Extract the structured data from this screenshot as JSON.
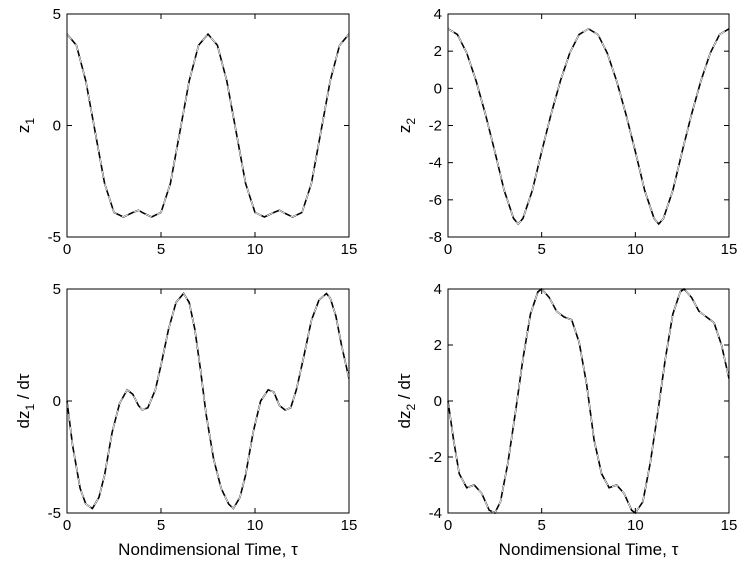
{
  "chart_data": [
    {
      "type": "line",
      "ylabel": "z1",
      "ylabel_main": "z",
      "ylabel_sub": "1",
      "xlabel": "",
      "xlim": [
        0,
        15
      ],
      "ylim": [
        -5,
        5
      ],
      "xticks": [
        "0",
        "5",
        "10",
        "15"
      ],
      "yticks": [
        "-5",
        "0",
        "5"
      ],
      "grid": false,
      "series": [
        {
          "style": "solid",
          "x": [
            0,
            0.5,
            1,
            1.5,
            2,
            2.5,
            3,
            3.5,
            3.8,
            4,
            4.5,
            5,
            5.5,
            6,
            6.5,
            7,
            7.5,
            8,
            8.5,
            9,
            9.5,
            10,
            10.5,
            11,
            11.3,
            11.5,
            12,
            12.5,
            13,
            13.5,
            14,
            14.5,
            15
          ],
          "y": [
            4.1,
            3.6,
            2.0,
            -0.3,
            -2.6,
            -3.9,
            -4.1,
            -3.9,
            -3.8,
            -3.9,
            -4.1,
            -3.9,
            -2.6,
            -0.3,
            2.0,
            3.6,
            4.1,
            3.6,
            2.0,
            -0.3,
            -2.6,
            -3.9,
            -4.1,
            -3.9,
            -3.8,
            -3.9,
            -4.1,
            -3.9,
            -2.6,
            -0.3,
            2.0,
            3.6,
            4.1
          ]
        },
        {
          "style": "dashed",
          "x": [
            0,
            0.5,
            1,
            1.5,
            2,
            2.5,
            3,
            3.5,
            3.8,
            4,
            4.5,
            5,
            5.5,
            6,
            6.5,
            7,
            7.5,
            8,
            8.5,
            9,
            9.5,
            10,
            10.5,
            11,
            11.3,
            11.5,
            12,
            12.5,
            13,
            13.5,
            14,
            14.5,
            15
          ],
          "y": [
            4.1,
            3.6,
            2.0,
            -0.3,
            -2.6,
            -3.9,
            -4.1,
            -3.9,
            -3.8,
            -3.9,
            -4.1,
            -3.9,
            -2.6,
            -0.3,
            2.0,
            3.6,
            4.1,
            3.6,
            2.0,
            -0.3,
            -2.6,
            -3.9,
            -4.1,
            -3.9,
            -3.8,
            -3.9,
            -4.1,
            -3.9,
            -2.6,
            -0.3,
            2.0,
            3.6,
            4.1
          ]
        }
      ]
    },
    {
      "type": "line",
      "ylabel": "z2",
      "ylabel_main": "z",
      "ylabel_sub": "2",
      "xlabel": "",
      "xlim": [
        0,
        15
      ],
      "ylim": [
        -8,
        4
      ],
      "xticks": [
        "0",
        "5",
        "10",
        "15"
      ],
      "yticks": [
        "-8",
        "-6",
        "-4",
        "-2",
        "0",
        "2",
        "4"
      ],
      "grid": false,
      "series": [
        {
          "style": "solid",
          "x": [
            0,
            0.5,
            1,
            1.5,
            2,
            2.5,
            3,
            3.5,
            3.75,
            4,
            4.5,
            5,
            5.5,
            6,
            6.5,
            7,
            7.5,
            8,
            8.5,
            9,
            9.5,
            10,
            10.5,
            11,
            11.25,
            11.5,
            12,
            12.5,
            13,
            13.5,
            14,
            14.5,
            15
          ],
          "y": [
            3.2,
            2.9,
            1.9,
            0.4,
            -1.4,
            -3.4,
            -5.5,
            -7.0,
            -7.3,
            -7.0,
            -5.5,
            -3.4,
            -1.4,
            0.4,
            1.9,
            2.9,
            3.2,
            2.9,
            1.9,
            0.4,
            -1.4,
            -3.4,
            -5.5,
            -7.0,
            -7.3,
            -7.0,
            -5.5,
            -3.4,
            -1.4,
            0.4,
            1.9,
            2.9,
            3.2
          ]
        },
        {
          "style": "dashed",
          "x": [
            0,
            0.5,
            1,
            1.5,
            2,
            2.5,
            3,
            3.5,
            3.75,
            4,
            4.5,
            5,
            5.5,
            6,
            6.5,
            7,
            7.5,
            8,
            8.5,
            9,
            9.5,
            10,
            10.5,
            11,
            11.25,
            11.5,
            12,
            12.5,
            13,
            13.5,
            14,
            14.5,
            15
          ],
          "y": [
            3.2,
            2.9,
            1.9,
            0.4,
            -1.4,
            -3.4,
            -5.5,
            -7.0,
            -7.3,
            -7.0,
            -5.5,
            -3.4,
            -1.4,
            0.4,
            1.9,
            2.9,
            3.2,
            2.9,
            1.9,
            0.4,
            -1.4,
            -3.4,
            -5.5,
            -7.0,
            -7.3,
            -7.0,
            -5.5,
            -3.4,
            -1.4,
            0.4,
            1.9,
            2.9,
            3.2
          ]
        }
      ]
    },
    {
      "type": "line",
      "ylabel": "dz1 / dτ",
      "ylabel_main": "dz",
      "ylabel_sub": "1",
      "ylabel_tail": " / dτ",
      "xlabel": "Nondimensional Time, τ",
      "xlim": [
        0,
        15
      ],
      "ylim": [
        -5,
        5
      ],
      "xticks": [
        "0",
        "5",
        "10",
        "15"
      ],
      "yticks": [
        "-5",
        "0",
        "5"
      ],
      "grid": false,
      "series": [
        {
          "style": "solid",
          "x": [
            0,
            0.3,
            0.7,
            1.0,
            1.35,
            1.7,
            2.0,
            2.4,
            2.8,
            3.2,
            3.5,
            3.8,
            4.0,
            4.3,
            4.7,
            5.0,
            5.4,
            5.8,
            6.2,
            6.5,
            6.8,
            7.1,
            7.4,
            7.8,
            8.2,
            8.6,
            8.85,
            9.2,
            9.5,
            9.9,
            10.3,
            10.7,
            11.0,
            11.3,
            11.6,
            11.9,
            12.2,
            12.6,
            13.0,
            13.4,
            13.8,
            14.0,
            14.3,
            14.6,
            15
          ],
          "y": [
            0,
            -2.0,
            -3.9,
            -4.6,
            -4.8,
            -4.3,
            -3.3,
            -1.4,
            -0.1,
            0.5,
            0.3,
            -0.2,
            -0.4,
            -0.3,
            0.5,
            1.6,
            3.2,
            4.4,
            4.8,
            4.4,
            3.2,
            1.4,
            -0.6,
            -2.6,
            -3.9,
            -4.6,
            -4.8,
            -4.3,
            -3.3,
            -1.4,
            0.0,
            0.5,
            0.4,
            -0.2,
            -0.4,
            -0.3,
            0.5,
            2.0,
            3.6,
            4.5,
            4.8,
            4.6,
            3.8,
            2.5,
            1.0
          ]
        },
        {
          "style": "dashed",
          "x": [
            0,
            0.3,
            0.7,
            1.0,
            1.35,
            1.7,
            2.0,
            2.4,
            2.8,
            3.2,
            3.5,
            3.8,
            4.0,
            4.3,
            4.7,
            5.0,
            5.4,
            5.8,
            6.2,
            6.5,
            6.8,
            7.1,
            7.4,
            7.8,
            8.2,
            8.6,
            8.85,
            9.2,
            9.5,
            9.9,
            10.3,
            10.7,
            11.0,
            11.3,
            11.6,
            11.9,
            12.2,
            12.6,
            13.0,
            13.4,
            13.8,
            14.0,
            14.3,
            14.6,
            15
          ],
          "y": [
            0,
            -2.0,
            -3.9,
            -4.6,
            -4.8,
            -4.3,
            -3.3,
            -1.4,
            -0.1,
            0.5,
            0.3,
            -0.2,
            -0.4,
            -0.3,
            0.5,
            1.6,
            3.2,
            4.4,
            4.8,
            4.4,
            3.2,
            1.4,
            -0.6,
            -2.6,
            -3.9,
            -4.6,
            -4.8,
            -4.3,
            -3.3,
            -1.4,
            0.0,
            0.5,
            0.4,
            -0.2,
            -0.4,
            -0.3,
            0.5,
            2.0,
            3.6,
            4.5,
            4.8,
            4.6,
            3.8,
            2.5,
            1.0
          ]
        }
      ]
    },
    {
      "type": "line",
      "ylabel": "dz2 / dτ",
      "ylabel_main": "dz",
      "ylabel_sub": "2",
      "ylabel_tail": " / dτ",
      "xlabel": "Nondimensional Time, τ",
      "xlim": [
        0,
        15
      ],
      "ylim": [
        -4,
        4
      ],
      "xticks": [
        "0",
        "5",
        "10",
        "15"
      ],
      "yticks": [
        "-4",
        "-2",
        "0",
        "2",
        "4"
      ],
      "grid": false,
      "series": [
        {
          "style": "solid",
          "x": [
            0,
            0.3,
            0.6,
            1.0,
            1.4,
            1.8,
            2.2,
            2.5,
            2.8,
            3.2,
            3.6,
            4.0,
            4.4,
            4.8,
            5.0,
            5.4,
            5.8,
            6.2,
            6.6,
            7.0,
            7.4,
            7.8,
            8.2,
            8.6,
            9.0,
            9.4,
            9.8,
            10.0,
            10.4,
            10.8,
            11.2,
            11.6,
            12.0,
            12.4,
            12.6,
            13.0,
            13.4,
            13.8,
            14.2,
            14.6,
            15
          ],
          "y": [
            0,
            -1.4,
            -2.6,
            -3.1,
            -3.0,
            -3.3,
            -3.9,
            -4.0,
            -3.6,
            -2.2,
            -0.4,
            1.5,
            3.1,
            3.9,
            4.0,
            3.7,
            3.2,
            3.0,
            2.9,
            2.1,
            0.6,
            -1.4,
            -2.6,
            -3.1,
            -3.0,
            -3.3,
            -3.9,
            -4.0,
            -3.6,
            -2.2,
            -0.4,
            1.5,
            3.1,
            3.9,
            4.0,
            3.7,
            3.2,
            3.0,
            2.8,
            2.0,
            0.8
          ]
        },
        {
          "style": "dashed",
          "x": [
            0,
            0.3,
            0.6,
            1.0,
            1.4,
            1.8,
            2.2,
            2.5,
            2.8,
            3.2,
            3.6,
            4.0,
            4.4,
            4.8,
            5.0,
            5.4,
            5.8,
            6.2,
            6.6,
            7.0,
            7.4,
            7.8,
            8.2,
            8.6,
            9.0,
            9.4,
            9.8,
            10.0,
            10.4,
            10.8,
            11.2,
            11.6,
            12.0,
            12.4,
            12.6,
            13.0,
            13.4,
            13.8,
            14.2,
            14.6,
            15
          ],
          "y": [
            0,
            -1.4,
            -2.6,
            -3.1,
            -3.0,
            -3.3,
            -3.9,
            -4.0,
            -3.6,
            -2.2,
            -0.4,
            1.5,
            3.1,
            3.9,
            4.0,
            3.7,
            3.2,
            3.0,
            2.9,
            2.1,
            0.6,
            -1.4,
            -2.6,
            -3.1,
            -3.0,
            -3.3,
            -3.9,
            -4.0,
            -3.6,
            -2.2,
            -0.4,
            1.5,
            3.1,
            3.9,
            4.0,
            3.7,
            3.2,
            3.0,
            2.8,
            2.0,
            0.8
          ]
        }
      ]
    }
  ]
}
